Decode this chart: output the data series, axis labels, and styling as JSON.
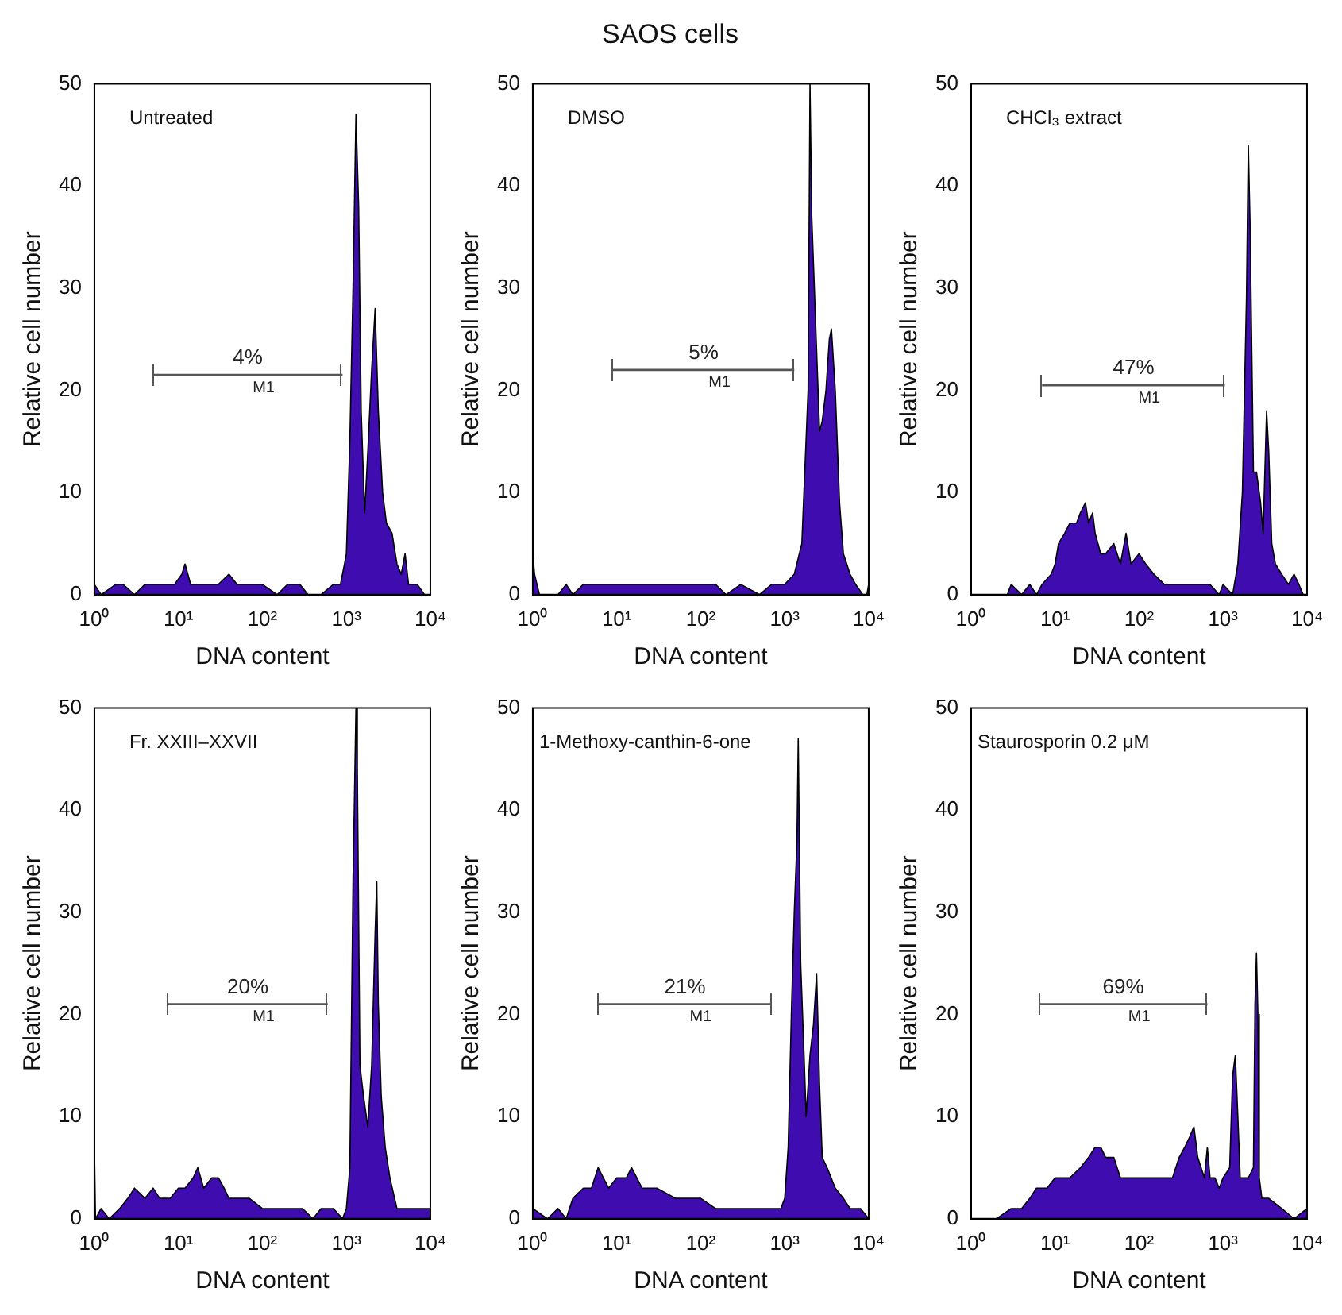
{
  "chart_data": [
    {
      "type": "area",
      "subtitle": "Untreated",
      "xlabel": "DNA content",
      "ylabel": "Relative cell number",
      "log": "x",
      "series": [
        {
          "type": "area",
          "color": "#3f0cb0",
          "x": [
            1,
            1.2,
            1.8,
            2.2,
            3,
            4,
            5,
            7,
            9,
            11,
            12,
            14,
            18,
            25,
            30,
            40,
            50,
            70,
            100,
            150,
            200,
            280,
            350,
            500,
            700,
            850,
            950,
            1000,
            1100,
            1200,
            1300,
            1400,
            1500,
            1650,
            1800,
            2000,
            2200,
            2400,
            2700,
            3000,
            3500,
            4000,
            4500,
            5000,
            5500,
            7000,
            8500,
            10000
          ],
          "values": [
            1,
            0,
            1,
            1,
            0,
            1,
            1,
            1,
            1,
            2,
            3,
            1,
            1,
            1,
            1,
            2,
            1,
            1,
            1,
            0,
            1,
            1,
            0,
            0,
            1,
            1,
            3,
            4,
            15,
            30,
            47,
            38,
            18,
            8,
            14,
            22,
            28,
            18,
            10,
            7,
            6,
            3,
            2,
            4,
            1,
            1,
            0,
            0
          ]
        },
        {
          "type": "line",
          "name": "M1",
          "color": "#555555",
          "x": [
            5,
            900
          ],
          "values": [
            21.5,
            21.5
          ]
        }
      ],
      "xlim": [
        1,
        10000
      ],
      "ylim": [
        0,
        50
      ],
      "xticks": [
        {
          "value": 1,
          "label": "10⁰"
        },
        {
          "value": 10,
          "label": "10¹"
        },
        {
          "value": 100,
          "label": "10²"
        },
        {
          "value": 1000,
          "label": "10³"
        },
        {
          "value": 10000,
          "label": "10⁴"
        }
      ],
      "yticks": [
        0,
        10,
        20,
        30,
        40,
        50
      ],
      "annotations": [
        {
          "text": "4%",
          "x": 67,
          "y": 21.5
        }
      ]
    },
    {
      "type": "area",
      "title": "SAOS cells",
      "subtitle": "DMSO",
      "xlabel": "DNA content",
      "ylabel": "Relative cell number",
      "log": "x",
      "series": [
        {
          "type": "area",
          "color": "#3f0cb0",
          "x": [
            1,
            1.05,
            1.2,
            2,
            2.5,
            3,
            4,
            5,
            7,
            10,
            15,
            20,
            30,
            50,
            70,
            100,
            150,
            200,
            300,
            500,
            700,
            1000,
            1300,
            1600,
            1900,
            2000,
            2100,
            2300,
            2600,
            2800,
            3100,
            3400,
            3600,
            4000,
            4500,
            5000,
            6000,
            7000,
            8500,
            9500,
            10000
          ],
          "values": [
            4,
            2,
            0,
            0,
            1,
            0,
            1,
            1,
            1,
            1,
            1,
            1,
            1,
            1,
            1,
            1,
            1,
            0,
            1,
            0,
            1,
            1,
            2,
            5,
            20,
            50,
            37,
            28,
            16,
            17,
            20,
            25,
            26,
            20,
            9,
            4,
            2,
            1,
            0,
            0,
            1
          ]
        },
        {
          "type": "line",
          "name": "M1",
          "color": "#555555",
          "x": [
            9,
            1300
          ],
          "values": [
            22,
            22
          ]
        }
      ],
      "xlim": [
        1,
        10000
      ],
      "ylim": [
        0,
        50
      ],
      "xticks": [
        {
          "value": 1,
          "label": "10⁰"
        },
        {
          "value": 10,
          "label": "10¹"
        },
        {
          "value": 100,
          "label": "10²"
        },
        {
          "value": 1000,
          "label": "10³"
        },
        {
          "value": 10000,
          "label": "10⁴"
        }
      ],
      "yticks": [
        0,
        10,
        20,
        30,
        40,
        50
      ],
      "annotations": [
        {
          "text": "5%",
          "x": 108,
          "y": 22
        }
      ]
    },
    {
      "type": "area",
      "subtitle": "CHCl₃ extract",
      "xlabel": "DNA content",
      "ylabel": "Relative cell number",
      "log": "x",
      "series": [
        {
          "type": "area",
          "color": "#3f0cb0",
          "x": [
            1,
            2.7,
            3,
            4,
            5,
            6,
            7,
            9,
            10,
            11,
            13,
            15,
            18,
            20,
            23,
            25,
            28,
            30,
            35,
            40,
            50,
            60,
            70,
            80,
            100,
            120,
            150,
            200,
            250,
            300,
            400,
            500,
            700,
            900,
            1000,
            1300,
            1500,
            1700,
            1900,
            2000,
            2100,
            2300,
            2500,
            2800,
            3000,
            3300,
            3500,
            3800,
            4200,
            5000,
            6000,
            7000,
            8000,
            9000,
            10000
          ],
          "values": [
            0,
            0,
            1,
            0,
            1,
            0,
            1,
            2,
            3,
            5,
            6,
            7,
            7,
            8,
            9,
            7,
            8,
            6,
            4,
            4,
            5,
            3,
            6,
            3,
            4,
            3,
            2,
            1,
            1,
            1,
            1,
            1,
            1,
            0,
            1,
            0,
            3,
            10,
            29,
            44,
            36,
            12,
            12,
            9,
            6,
            18,
            14,
            5,
            3,
            2,
            1,
            2,
            1,
            0,
            0
          ]
        },
        {
          "type": "line",
          "name": "M1",
          "color": "#555555",
          "x": [
            7,
            1050
          ],
          "values": [
            20.5,
            20.5
          ]
        }
      ],
      "xlim": [
        1,
        10000
      ],
      "ylim": [
        0,
        50
      ],
      "xticks": [
        {
          "value": 1,
          "label": "10⁰"
        },
        {
          "value": 10,
          "label": "10¹"
        },
        {
          "value": 100,
          "label": "10²"
        },
        {
          "value": 1000,
          "label": "10³"
        },
        {
          "value": 10000,
          "label": "10⁴"
        }
      ],
      "yticks": [
        0,
        10,
        20,
        30,
        40,
        50
      ],
      "annotations": [
        {
          "text": "47%",
          "x": 86,
          "y": 20.5
        }
      ]
    },
    {
      "type": "area",
      "subtitle": "Fr. XXIII–XXVII",
      "xlabel": "DNA content",
      "ylabel": "Relative cell number",
      "log": "x",
      "series": [
        {
          "type": "area",
          "color": "#3f0cb0",
          "x": [
            1,
            1.03,
            1.2,
            1.5,
            2,
            2.5,
            3,
            4,
            5,
            6,
            8,
            10,
            12,
            15,
            17,
            20,
            25,
            30,
            35,
            40,
            50,
            70,
            100,
            150,
            200,
            300,
            400,
            500,
            700,
            900,
            1000,
            1100,
            1200,
            1300,
            1350,
            1450,
            1600,
            1800,
            2000,
            2200,
            2300,
            2400,
            2600,
            2900,
            3300,
            4000,
            5000,
            7000,
            10000
          ],
          "values": [
            7,
            0,
            1,
            0,
            1,
            2,
            3,
            2,
            3,
            2,
            2,
            3,
            3,
            4,
            5,
            3,
            4,
            4,
            3,
            2,
            2,
            2,
            1,
            1,
            1,
            1,
            0,
            1,
            1,
            0,
            1,
            5,
            33,
            50,
            44,
            15,
            12,
            9,
            15,
            28,
            33,
            21,
            12,
            7,
            4,
            1,
            1,
            1,
            1
          ]
        },
        {
          "type": "line",
          "name": "M1",
          "color": "#555555",
          "x": [
            7.5,
            600
          ],
          "values": [
            21,
            21
          ]
        }
      ],
      "xlim": [
        1,
        10000
      ],
      "ylim": [
        0,
        50
      ],
      "xticks": [
        {
          "value": 1,
          "label": "10⁰"
        },
        {
          "value": 10,
          "label": "10¹"
        },
        {
          "value": 100,
          "label": "10²"
        },
        {
          "value": 1000,
          "label": "10³"
        },
        {
          "value": 10000,
          "label": "10⁴"
        }
      ],
      "yticks": [
        0,
        10,
        20,
        30,
        40,
        50
      ],
      "annotations": [
        {
          "text": "20%",
          "x": 67,
          "y": 21
        }
      ]
    },
    {
      "type": "area",
      "subtitle": "1-Methoxy-canthin-6-one",
      "xlabel": "DNA content",
      "ylabel": "Relative cell number",
      "log": "x",
      "series": [
        {
          "type": "area",
          "color": "#3f0cb0",
          "x": [
            1,
            1.5,
            2,
            2.5,
            3,
            4,
            5,
            6,
            8,
            10,
            13,
            15,
            20,
            30,
            50,
            70,
            100,
            150,
            200,
            300,
            500,
            700,
            900,
            1000,
            1100,
            1200,
            1300,
            1400,
            1450,
            1550,
            1700,
            1800,
            2000,
            2200,
            2400,
            2600,
            2800,
            3200,
            4000,
            5000,
            6000,
            8000,
            10000
          ],
          "values": [
            1,
            0,
            1,
            0,
            2,
            3,
            3,
            5,
            3,
            4,
            4,
            5,
            3,
            3,
            2,
            2,
            2,
            1,
            1,
            1,
            1,
            1,
            1,
            2,
            7,
            20,
            30,
            37,
            47,
            25,
            16,
            10,
            16,
            19,
            24,
            13,
            6,
            5,
            3,
            2,
            1,
            1,
            0
          ]
        },
        {
          "type": "line",
          "name": "M1",
          "color": "#555555",
          "x": [
            6,
            700
          ],
          "values": [
            21,
            21
          ]
        }
      ],
      "xlim": [
        1,
        10000
      ],
      "ylim": [
        0,
        50
      ],
      "xticks": [
        {
          "value": 1,
          "label": "10⁰"
        },
        {
          "value": 10,
          "label": "10¹"
        },
        {
          "value": 100,
          "label": "10²"
        },
        {
          "value": 1000,
          "label": "10³"
        },
        {
          "value": 10000,
          "label": "10⁴"
        }
      ],
      "yticks": [
        0,
        10,
        20,
        30,
        40,
        50
      ],
      "annotations": [
        {
          "text": "21%",
          "x": 65,
          "y": 21
        }
      ]
    },
    {
      "type": "area",
      "subtitle": "Staurosporin 0.2 μM",
      "xlabel": "DNA content",
      "ylabel": "Relative cell number",
      "log": "x",
      "series": [
        {
          "type": "area",
          "color": "#3f0cb0",
          "x": [
            1,
            2,
            3,
            4,
            5,
            6,
            7,
            8,
            10,
            12,
            15,
            20,
            25,
            30,
            35,
            40,
            50,
            60,
            80,
            100,
            130,
            160,
            200,
            250,
            300,
            350,
            400,
            450,
            500,
            600,
            650,
            700,
            800,
            900,
            1000,
            1200,
            1300,
            1400,
            1500,
            1600,
            1800,
            2000,
            2300,
            2400,
            2500,
            2600,
            2700,
            2900,
            3500,
            5000,
            7000,
            10000
          ],
          "values": [
            0,
            0,
            1,
            1,
            2,
            3,
            3,
            3,
            4,
            4,
            4,
            5,
            6,
            7,
            7,
            6,
            6,
            4,
            4,
            4,
            4,
            4,
            4,
            4,
            6,
            7,
            8,
            9,
            6,
            4,
            7,
            4,
            4,
            3,
            4,
            5,
            14,
            16,
            10,
            4,
            4,
            4,
            5,
            21,
            26,
            20,
            4,
            2,
            2,
            1,
            0,
            1
          ]
        },
        {
          "type": "line",
          "name": "M1",
          "color": "#555555",
          "x": [
            6.5,
            650
          ],
          "values": [
            21,
            21
          ]
        }
      ],
      "xlim": [
        1,
        10000
      ],
      "ylim": [
        0,
        50
      ],
      "xticks": [
        {
          "value": 1,
          "label": "10⁰"
        },
        {
          "value": 10,
          "label": "10¹"
        },
        {
          "value": 100,
          "label": "10²"
        },
        {
          "value": 1000,
          "label": "10³"
        },
        {
          "value": 10000,
          "label": "10⁴"
        }
      ],
      "yticks": [
        0,
        10,
        20,
        30,
        40,
        50
      ],
      "annotations": [
        {
          "text": "69%",
          "x": 65,
          "y": 21
        }
      ]
    }
  ]
}
